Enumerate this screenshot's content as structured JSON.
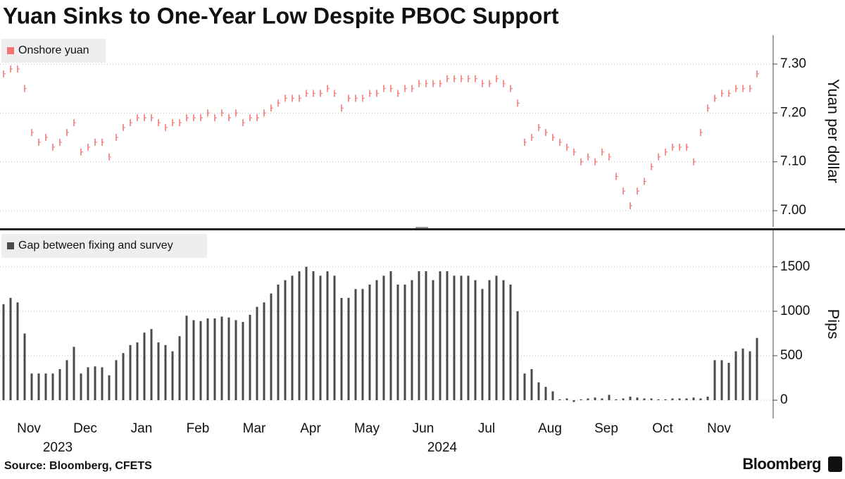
{
  "chart_data": [
    {
      "type": "tick",
      "title": "Yuan Sinks to One-Year Low Despite PBOC Support",
      "y_label": "Yuan per dollar",
      "series": [
        {
          "name": "Onshore yuan",
          "color": "#f07470",
          "values": [
            7.28,
            7.29,
            7.29,
            7.25,
            7.16,
            7.14,
            7.15,
            7.13,
            7.14,
            7.16,
            7.18,
            7.12,
            7.13,
            7.14,
            7.14,
            7.11,
            7.15,
            7.17,
            7.18,
            7.19,
            7.19,
            7.19,
            7.18,
            7.17,
            7.18,
            7.18,
            7.19,
            7.19,
            7.19,
            7.2,
            7.19,
            7.2,
            7.19,
            7.2,
            7.18,
            7.19,
            7.19,
            7.2,
            7.21,
            7.22,
            7.23,
            7.23,
            7.23,
            7.24,
            7.24,
            7.24,
            7.25,
            7.24,
            7.21,
            7.23,
            7.23,
            7.23,
            7.24,
            7.24,
            7.25,
            7.25,
            7.24,
            7.25,
            7.25,
            7.26,
            7.26,
            7.26,
            7.26,
            7.27,
            7.27,
            7.27,
            7.27,
            7.27,
            7.26,
            7.26,
            7.27,
            7.26,
            7.25,
            7.22,
            7.14,
            7.15,
            7.17,
            7.16,
            7.15,
            7.14,
            7.13,
            7.12,
            7.1,
            7.11,
            7.1,
            7.12,
            7.11,
            7.07,
            7.04,
            7.01,
            7.04,
            7.06,
            7.09,
            7.11,
            7.12,
            7.13,
            7.13,
            7.13,
            7.1,
            7.16,
            7.21,
            7.23,
            7.24,
            7.24,
            7.25,
            7.25,
            7.25,
            7.28
          ]
        }
      ],
      "ylim": [
        6.967,
        7.359
      ],
      "yticks": [
        {
          "value": 7.0,
          "label": "7.00"
        },
        {
          "value": 7.1,
          "label": "7.10"
        },
        {
          "value": 7.2,
          "label": "7.20"
        },
        {
          "value": 7.3,
          "label": "7.30"
        }
      ],
      "grid": true
    },
    {
      "type": "bar",
      "y_label": "Pips",
      "categories": [
        null,
        null,
        null,
        null,
        "Nov",
        null,
        null,
        null,
        null,
        null,
        null,
        null,
        "Dec",
        null,
        null,
        null,
        null,
        null,
        null,
        null,
        "Jan",
        null,
        null,
        null,
        null,
        null,
        null,
        null,
        "Feb",
        null,
        null,
        null,
        null,
        null,
        null,
        null,
        "Mar",
        null,
        null,
        null,
        null,
        null,
        null,
        null,
        "Apr",
        null,
        null,
        null,
        null,
        null,
        null,
        null,
        "May",
        null,
        null,
        null,
        null,
        null,
        null,
        null,
        "Jun",
        null,
        null,
        null,
        null,
        null,
        null,
        null,
        null,
        "Jul",
        null,
        null,
        null,
        null,
        null,
        null,
        null,
        null,
        "Aug",
        null,
        null,
        null,
        null,
        null,
        null,
        null,
        "Sep",
        null,
        null,
        null,
        null,
        null,
        null,
        null,
        "Oct",
        null,
        null,
        null,
        null,
        null,
        null,
        null,
        "Nov",
        null,
        null,
        null,
        null,
        null
      ],
      "year_labels": [
        "2023",
        "2024"
      ],
      "series": [
        {
          "name": "Gap between fixing and survey",
          "color": "#4a4a4a",
          "values": [
            1080,
            1150,
            1100,
            750,
            300,
            300,
            300,
            300,
            350,
            450,
            600,
            300,
            370,
            380,
            370,
            280,
            450,
            530,
            620,
            650,
            760,
            800,
            650,
            620,
            550,
            720,
            950,
            900,
            890,
            920,
            920,
            940,
            930,
            900,
            880,
            960,
            1050,
            1100,
            1200,
            1300,
            1350,
            1400,
            1450,
            1500,
            1450,
            1400,
            1450,
            1400,
            1150,
            1150,
            1250,
            1250,
            1300,
            1350,
            1400,
            1450,
            1300,
            1300,
            1350,
            1450,
            1450,
            1350,
            1450,
            1450,
            1400,
            1400,
            1400,
            1350,
            1250,
            1350,
            1400,
            1350,
            1300,
            1000,
            300,
            350,
            200,
            150,
            100,
            10,
            20,
            -20,
            10,
            20,
            30,
            20,
            60,
            10,
            20,
            40,
            30,
            20,
            20,
            10,
            10,
            20,
            20,
            20,
            30,
            20,
            40,
            450,
            450,
            420,
            550,
            580,
            550,
            700
          ]
        }
      ],
      "ylim": [
        -205,
        1910
      ],
      "yticks": [
        0,
        500,
        1000,
        1500
      ],
      "grid": true,
      "source": "Source: Bloomberg, CFETS",
      "brand": "Bloomberg"
    }
  ]
}
